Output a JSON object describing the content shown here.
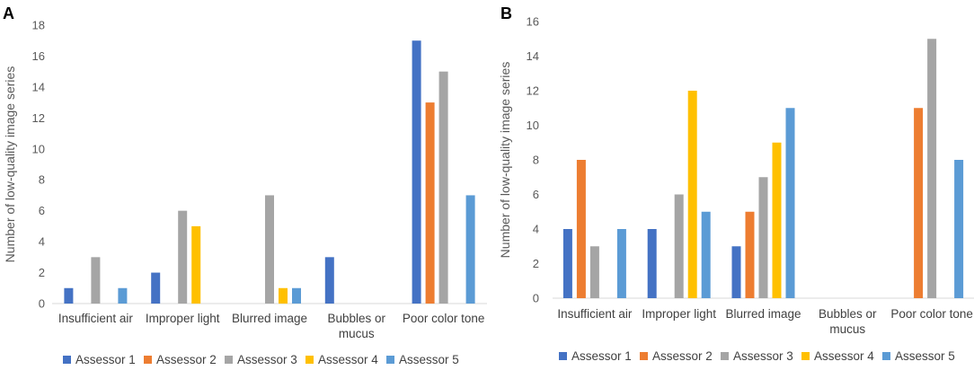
{
  "chart_data": [
    {
      "panel": "A",
      "type": "bar",
      "ylabel": "Number of low-quality image series",
      "ylim": [
        0,
        18
      ],
      "ytick_step": 2,
      "grid": false,
      "categories": [
        [
          "Insufficient air"
        ],
        [
          "Improper light"
        ],
        [
          "Blurred image"
        ],
        [
          "Bubbles or",
          "mucus"
        ],
        [
          "Poor color tone"
        ]
      ],
      "series": [
        {
          "name": "Assessor 1",
          "color": "#4472C4",
          "values": [
            1,
            2,
            0,
            3,
            17
          ]
        },
        {
          "name": "Assessor 2",
          "color": "#ED7D31",
          "values": [
            0,
            0,
            0,
            0,
            13
          ]
        },
        {
          "name": "Assessor 3",
          "color": "#A5A5A5",
          "values": [
            3,
            6,
            7,
            0,
            15
          ]
        },
        {
          "name": "Assessor 4",
          "color": "#FFC000",
          "values": [
            0,
            5,
            1,
            0,
            0
          ]
        },
        {
          "name": "Assessor 5",
          "color": "#5B9BD5",
          "values": [
            1,
            0,
            1,
            0,
            7
          ]
        }
      ],
      "legend": "bottom"
    },
    {
      "panel": "B",
      "type": "bar",
      "ylabel": "Number of low-quality image series",
      "ylim": [
        0,
        16
      ],
      "ytick_step": 2,
      "grid": false,
      "categories": [
        [
          "Insufficient air"
        ],
        [
          "Improper light"
        ],
        [
          "Blurred image"
        ],
        [
          "Bubbles or",
          "mucus"
        ],
        [
          "Poor color tone"
        ]
      ],
      "series": [
        {
          "name": "Assessor 1",
          "color": "#4472C4",
          "values": [
            4,
            4,
            3,
            0,
            0
          ]
        },
        {
          "name": "Assessor 2",
          "color": "#ED7D31",
          "values": [
            8,
            0,
            5,
            0,
            11
          ]
        },
        {
          "name": "Assessor 3",
          "color": "#A5A5A5",
          "values": [
            3,
            6,
            7,
            0,
            15
          ]
        },
        {
          "name": "Assessor 4",
          "color": "#FFC000",
          "values": [
            0,
            12,
            9,
            0,
            0
          ]
        },
        {
          "name": "Assessor 5",
          "color": "#5B9BD5",
          "values": [
            4,
            5,
            11,
            0,
            8
          ]
        }
      ],
      "legend": "bottom"
    }
  ]
}
